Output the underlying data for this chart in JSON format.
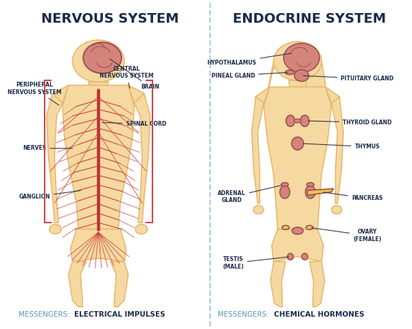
{
  "title_left": "NERVOUS SYSTEM",
  "title_right": "ENDOCRINE SYSTEM",
  "messenger_left_label": "MESSENGERS: ",
  "messenger_left_bold": "ELECTRICAL IMPULSES",
  "messenger_right_label": "MESSENGERS: ",
  "messenger_right_bold": "CHEMICAL HORMONES",
  "bg_color": "#ffffff",
  "body_fill": "#f5d9a0",
  "body_outline": "#e8b870",
  "brain_fill": "#d4847a",
  "brain_outline": "#a05050",
  "nerve_color": "#cc3333",
  "nerve_center_color": "#cc4444",
  "organ_fill": "#d4847a",
  "organ_outline": "#a05050",
  "organ_yellow": "#e8c850",
  "title_color": "#1a2a4a",
  "label_color": "#1a2a4a",
  "messenger_text_color": "#5599bb",
  "messenger_bold_color": "#1a2a4a",
  "divider_color": "#aaccdd",
  "bracket_color": "#cc4444"
}
